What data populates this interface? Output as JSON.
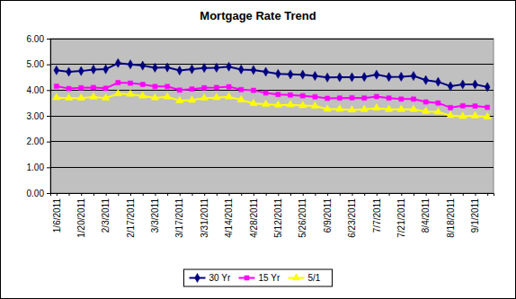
{
  "chart_data": {
    "type": "line",
    "title": "Mortgage Rate Trend",
    "categories": [
      "1/6/2011",
      null,
      "1/20/2011",
      null,
      "2/3/2011",
      null,
      "2/17/2011",
      null,
      "3/3/2011",
      null,
      "3/17/2011",
      null,
      "3/31/2011",
      null,
      "4/14/2011",
      null,
      "4/28/2011",
      null,
      "5/12/2011",
      null,
      "5/26/2011",
      null,
      "6/9/2011",
      null,
      "6/23/2011",
      null,
      "7/7/2011",
      null,
      "7/21/2011",
      null,
      "8/4/2011",
      null,
      "8/18/2011",
      null,
      "9/1/2011",
      null
    ],
    "series": [
      {
        "name": "30 Yr",
        "color": "#000080",
        "marker": "diamond",
        "values": [
          4.77,
          4.71,
          4.74,
          4.8,
          4.81,
          5.05,
          5.0,
          4.95,
          4.87,
          4.88,
          4.76,
          4.81,
          4.86,
          4.87,
          4.91,
          4.8,
          4.78,
          4.71,
          4.63,
          4.61,
          4.6,
          4.55,
          4.49,
          4.5,
          4.5,
          4.51,
          4.6,
          4.51,
          4.52,
          4.55,
          4.39,
          4.32,
          4.15,
          4.22,
          4.22,
          4.12
        ]
      },
      {
        "name": "15 Yr",
        "color": "#ff00ff",
        "marker": "square",
        "values": [
          4.15,
          4.06,
          4.09,
          4.1,
          4.07,
          4.29,
          4.27,
          4.22,
          4.14,
          4.14,
          4.0,
          4.04,
          4.09,
          4.1,
          4.13,
          4.02,
          3.99,
          3.89,
          3.83,
          3.81,
          3.78,
          3.74,
          3.68,
          3.69,
          3.7,
          3.69,
          3.75,
          3.69,
          3.65,
          3.65,
          3.54,
          3.5,
          3.32,
          3.39,
          3.38,
          3.33
        ]
      },
      {
        "name": "5/1",
        "color": "#ffff00",
        "marker": "triangle",
        "values": [
          3.71,
          3.69,
          3.69,
          3.73,
          3.69,
          3.86,
          3.84,
          3.77,
          3.7,
          3.74,
          3.59,
          3.61,
          3.69,
          3.71,
          3.74,
          3.62,
          3.48,
          3.45,
          3.42,
          3.43,
          3.4,
          3.38,
          3.26,
          3.26,
          3.23,
          3.25,
          3.3,
          3.25,
          3.25,
          3.25,
          3.17,
          3.15,
          3.01,
          2.98,
          3.0,
          2.96
        ]
      }
    ],
    "ylim": [
      0,
      6
    ],
    "yticks": [
      {
        "value": 0,
        "label": "0.00"
      },
      {
        "value": 1,
        "label": "1.00"
      },
      {
        "value": 2,
        "label": "2.00"
      },
      {
        "value": 3,
        "label": "3.00"
      },
      {
        "value": 4,
        "label": "4.00"
      },
      {
        "value": 5,
        "label": "5.00"
      },
      {
        "value": 6,
        "label": "6.00"
      }
    ],
    "grid": true,
    "legend": "bottom"
  }
}
